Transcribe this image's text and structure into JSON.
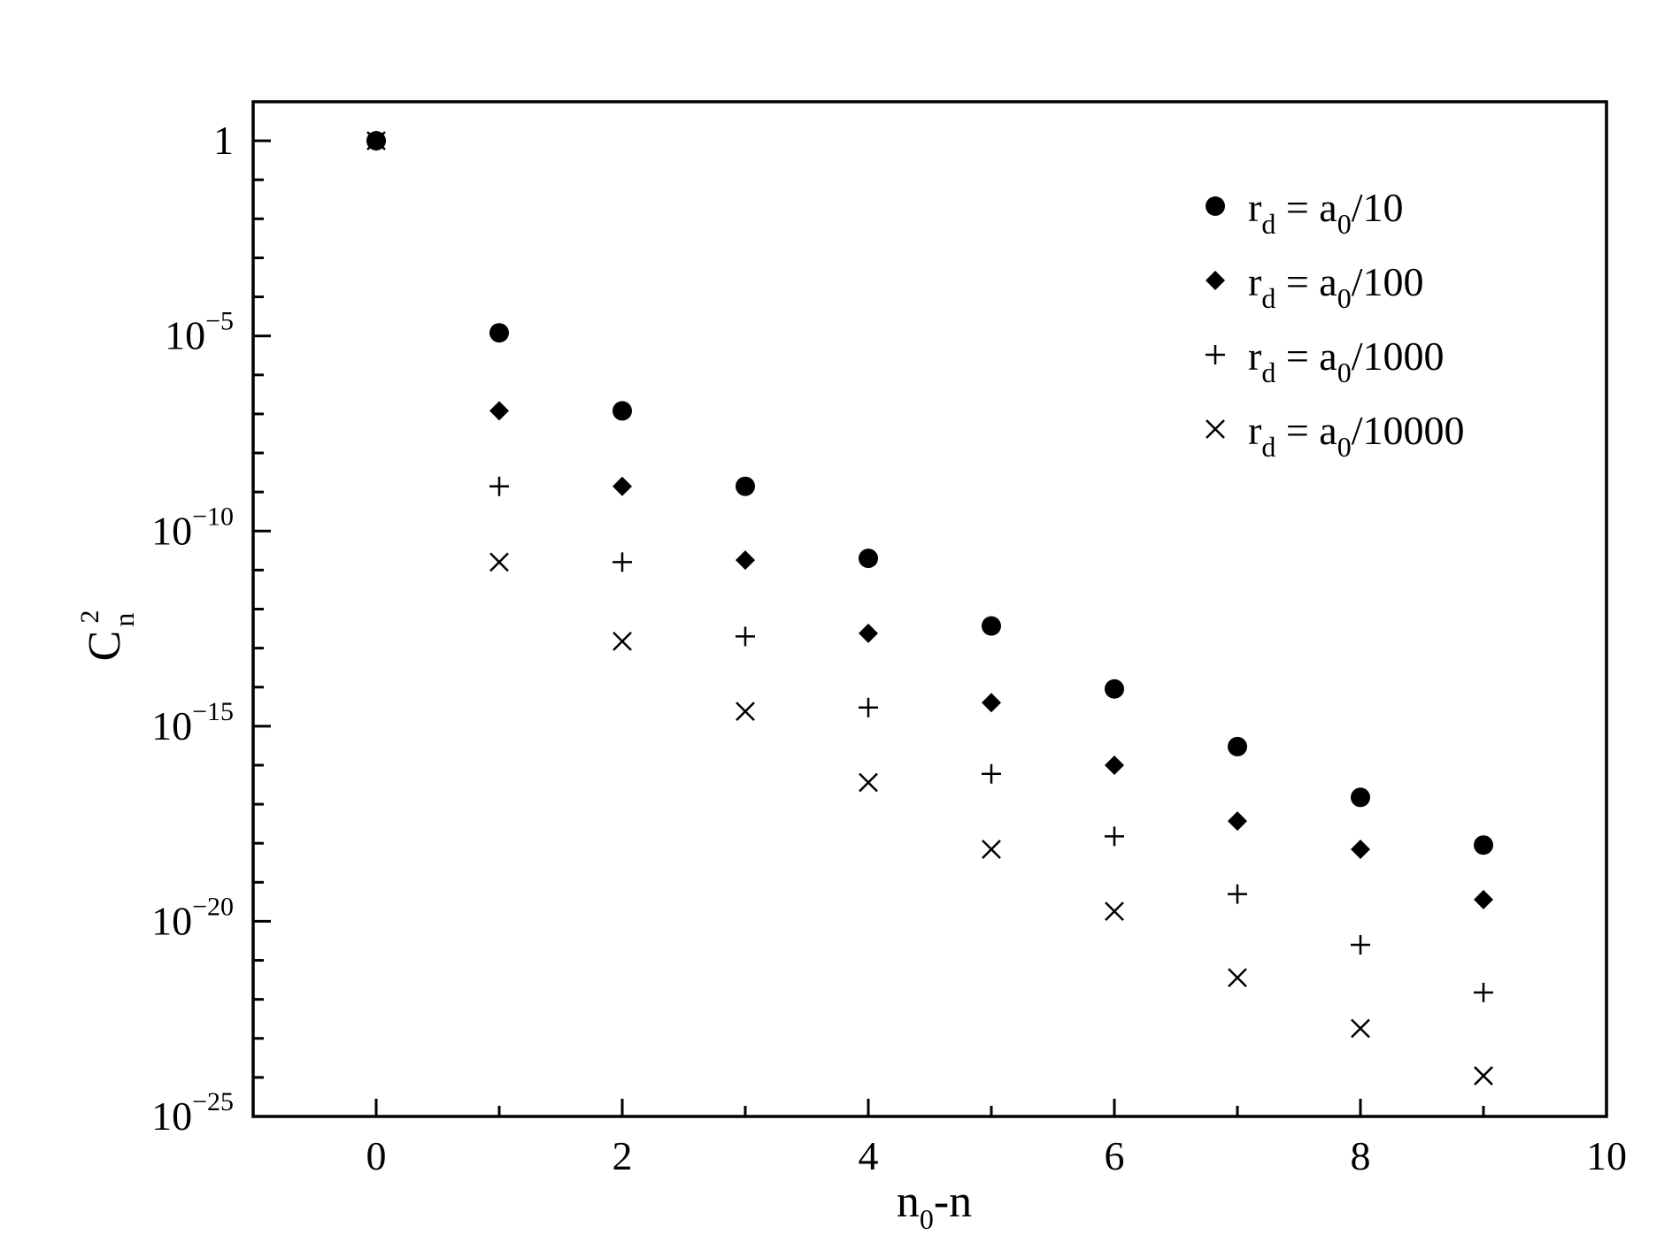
{
  "chart_data": {
    "type": "scatter",
    "title": "",
    "xlabel": {
      "base": "n",
      "sub": "0",
      "rest": "-n"
    },
    "ylabel": {
      "base": "C",
      "sub": "n",
      "sup": "2"
    },
    "x_range": [
      -1,
      10
    ],
    "y_range_log10": [
      -25,
      1
    ],
    "y_scale": "log",
    "grid": false,
    "legend_position": "top-right",
    "x_ticks": [
      "0",
      "2",
      "4",
      "6",
      "8",
      "10"
    ],
    "y_ticks": [
      {
        "base": "1",
        "exp": ""
      },
      {
        "base": "10",
        "exp": "−5"
      },
      {
        "base": "10",
        "exp": "−10"
      },
      {
        "base": "10",
        "exp": "−15"
      },
      {
        "base": "10",
        "exp": "−20"
      },
      {
        "base": "10",
        "exp": "−25"
      }
    ],
    "series": [
      {
        "name": "r_d = a_0/10",
        "label": {
          "r": "r",
          "rsub": "d",
          "mid": " = a",
          "asub": "0",
          "tail": "/10"
        },
        "marker": "circle",
        "x": [
          0,
          1,
          2,
          3,
          4,
          5,
          6,
          7,
          8,
          9
        ],
        "y": [
          "1",
          "1.2e-5",
          "1.2e-7",
          "1.4e-9",
          "2e-11",
          "3.7e-13",
          "9e-15",
          "3e-16",
          "1.5e-17",
          "9e-19"
        ]
      },
      {
        "name": "r_d = a_0/100",
        "label": {
          "r": "r",
          "rsub": "d",
          "mid": " = a",
          "asub": "0",
          "tail": "/100"
        },
        "marker": "diamond",
        "x": [
          0,
          1,
          2,
          3,
          4,
          5,
          6,
          7,
          8,
          9
        ],
        "y": [
          "1",
          "1.2e-7",
          "1.4e-9",
          "1.8e-11",
          "2.4e-13",
          "4e-15",
          "1e-16",
          "3.7e-18",
          "7e-19",
          "3.6e-20"
        ]
      },
      {
        "name": "r_d = a_0/1000",
        "label": {
          "r": "r",
          "rsub": "d",
          "mid": " = a",
          "asub": "0",
          "tail": "/1000"
        },
        "marker": "plus",
        "x": [
          0,
          1,
          2,
          3,
          4,
          5,
          6,
          7,
          8,
          9
        ],
        "y": [
          "1",
          "1.4e-9",
          "1.6e-11",
          "2e-13",
          "3e-15",
          "6e-17",
          "1.5e-18",
          "5e-20",
          "2.5e-21",
          "1.5e-22"
        ]
      },
      {
        "name": "r_d = a_0/10000",
        "label": {
          "r": "r",
          "rsub": "d",
          "mid": " = a",
          "asub": "0",
          "tail": "/10000"
        },
        "marker": "cross",
        "x": [
          0,
          1,
          2,
          3,
          4,
          5,
          6,
          7,
          8,
          9
        ],
        "y": [
          "1",
          "1.6e-11",
          "1.5e-13",
          "2.4e-15",
          "3.6e-17",
          "7e-19",
          "1.8e-20",
          "3.6e-22",
          "1.8e-23",
          "1.1e-24"
        ]
      }
    ]
  }
}
